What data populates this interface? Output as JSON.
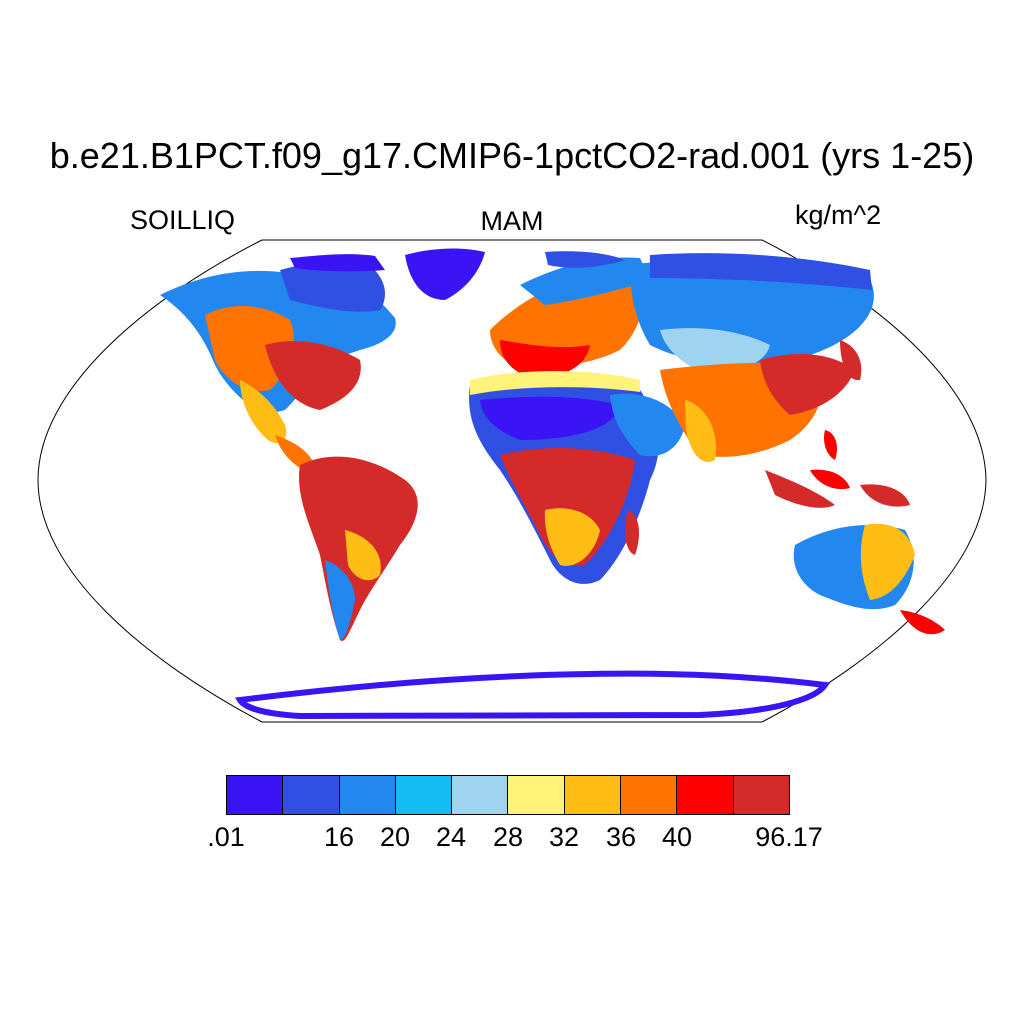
{
  "title": "b.e21.B1PCT.f09_g17.CMIP6-1pctCO2-rad.001 (yrs 1-25)",
  "variable": "SOILLIQ",
  "season": "MAM",
  "units": "kg/m^2",
  "colorbar": {
    "colors": [
      "#3a14f5",
      "#3050e3",
      "#2288f0",
      "#14bcf4",
      "#9fd4f0",
      "#fff37a",
      "#ffbd16",
      "#ff7300",
      "#ff0000",
      "#d52a2a"
    ],
    "labels": [
      ".01",
      "16",
      "20",
      "24",
      "28",
      "32",
      "36",
      "40",
      "96.17"
    ]
  },
  "map": {
    "projection": "robinson",
    "ocean_color": "#ffffff",
    "outline_color": "#000000"
  }
}
